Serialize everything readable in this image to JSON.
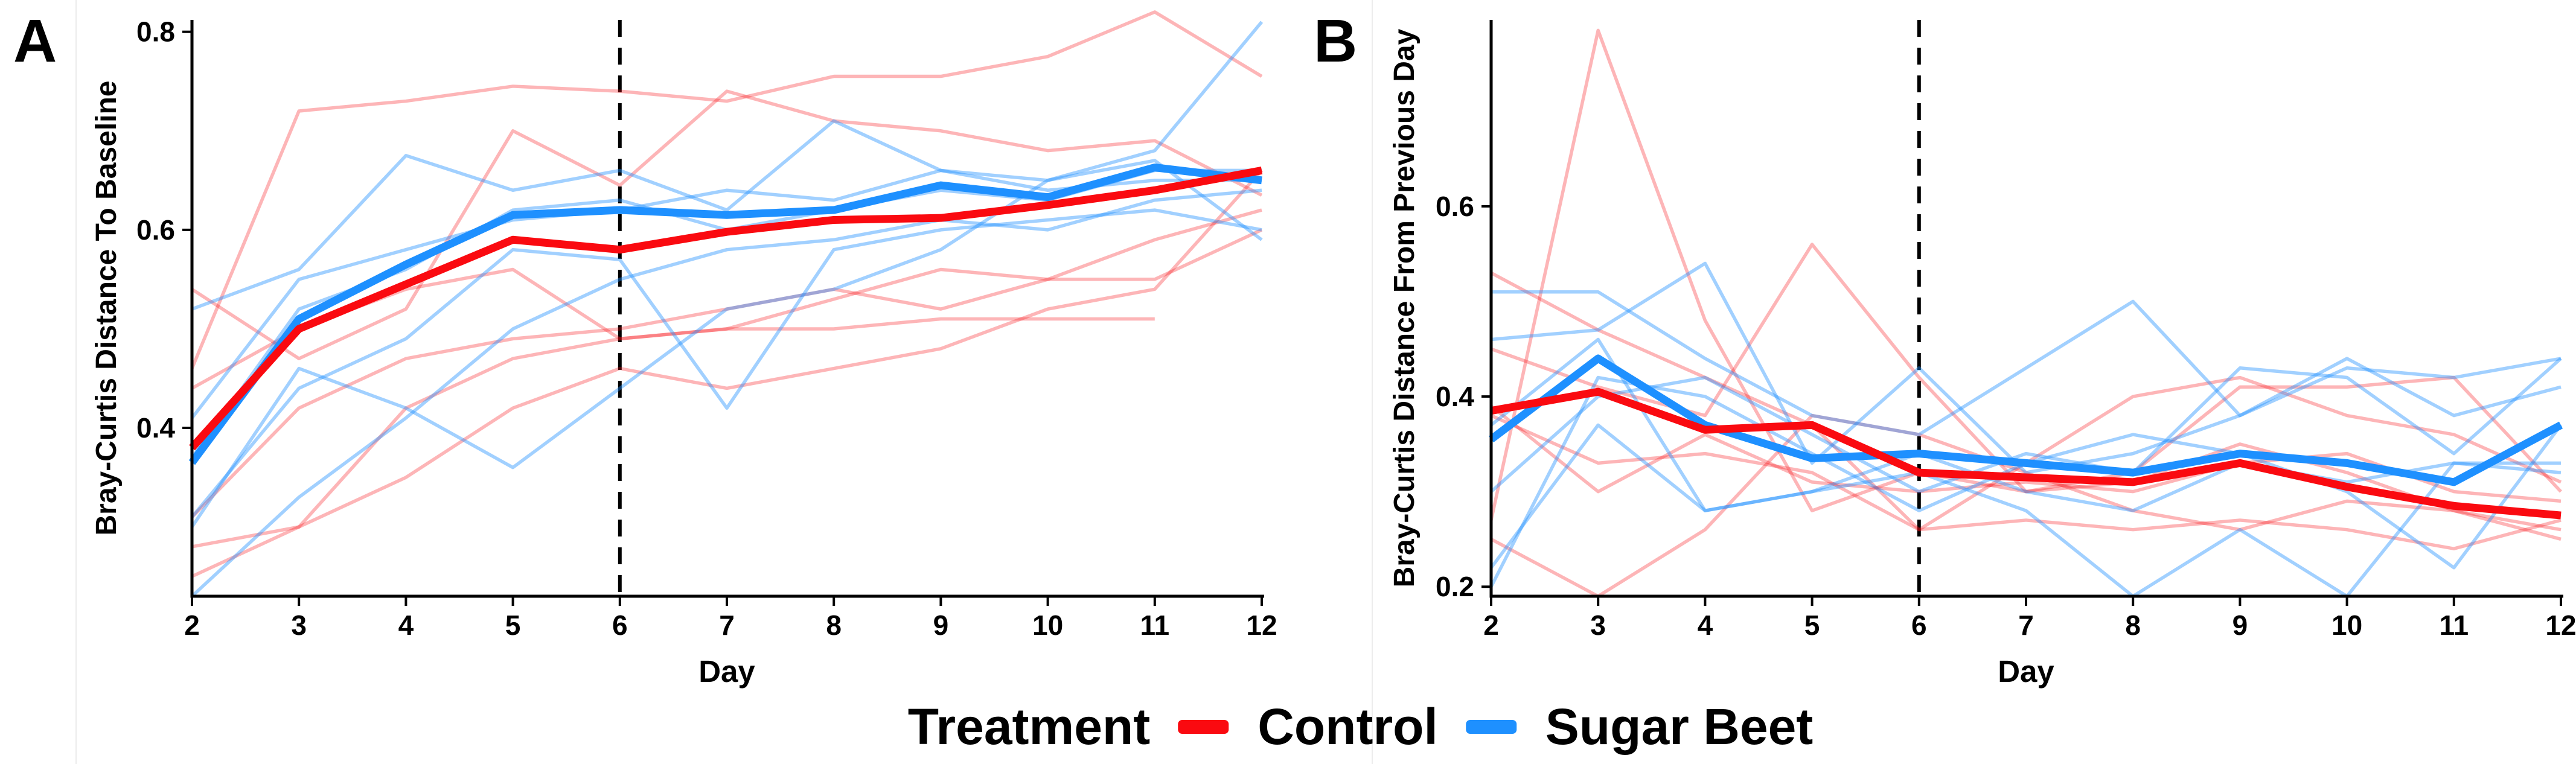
{
  "colors": {
    "control": "#fa0a10",
    "sugar_beet": "#1e90ff",
    "control_individual_opacity": 0.3,
    "sugar_beet_individual_opacity": 0.42,
    "axis": "#000000",
    "vline": "#000000",
    "text": "#000000"
  },
  "legend": {
    "title": "Treatment",
    "items": [
      {
        "label": "Control",
        "group": "Control",
        "color": "#fa0a10"
      },
      {
        "label": "Sugar Beet",
        "group": "Sugar Beet",
        "color": "#1e90ff"
      }
    ]
  },
  "chart_data": [
    {
      "type": "line",
      "panel_label": "A",
      "xlabel": "Day",
      "ylabel": "Bray-Curtis Distance To Baseline",
      "x": [
        2,
        3,
        4,
        5,
        6,
        7,
        8,
        9,
        10,
        11,
        12
      ],
      "x_ticks": [
        2,
        3,
        4,
        5,
        6,
        7,
        8,
        9,
        10,
        11,
        12
      ],
      "y_ticks": [
        0.4,
        0.6,
        0.8
      ],
      "xlim": [
        2,
        12
      ],
      "ylim": [
        0.23,
        0.812
      ],
      "grid": false,
      "vline_x": 6,
      "vline_style": "dashed",
      "series": [
        {
          "name": "Control mean",
          "group": "Control",
          "role": "mean",
          "values": [
            0.38,
            0.5,
            0.545,
            0.59,
            0.58,
            0.598,
            0.61,
            0.612,
            0.625,
            0.64,
            0.66
          ]
        },
        {
          "name": "Sugar Beet mean",
          "group": "Sugar Beet",
          "role": "mean",
          "values": [
            0.365,
            0.51,
            0.565,
            0.615,
            0.62,
            0.615,
            0.62,
            0.645,
            0.633,
            0.663,
            0.65
          ]
        },
        {
          "name": "Control subject 1",
          "group": "Control",
          "role": "individual",
          "values": [
            0.46,
            0.72,
            0.73,
            0.745,
            0.74,
            0.73,
            0.755,
            0.755,
            0.775,
            0.82,
            0.755
          ]
        },
        {
          "name": "Control subject 2",
          "group": "Control",
          "role": "individual",
          "values": [
            0.54,
            0.47,
            0.52,
            0.7,
            0.645,
            0.74,
            0.71,
            0.7,
            0.68,
            0.69,
            0.635
          ]
        },
        {
          "name": "Control subject 3",
          "group": "Control",
          "role": "individual",
          "values": [
            0.44,
            0.5,
            0.54,
            0.56,
            0.49,
            0.5,
            0.53,
            0.56,
            0.55,
            0.59,
            0.62
          ]
        },
        {
          "name": "Control subject 4",
          "group": "Control",
          "role": "individual",
          "values": [
            0.31,
            0.42,
            0.47,
            0.49,
            0.5,
            0.52,
            0.54,
            0.52,
            0.55,
            0.55,
            0.6
          ]
        },
        {
          "name": "Control subject 5",
          "group": "Control",
          "role": "individual",
          "values": [
            0.28,
            0.3,
            0.42,
            0.47,
            0.49,
            0.5,
            0.5,
            0.51,
            0.51,
            0.51,
            null
          ]
        },
        {
          "name": "Control subject 6",
          "group": "Control",
          "role": "individual",
          "values": [
            0.25,
            0.3,
            0.35,
            0.42,
            0.46,
            0.44,
            0.46,
            0.48,
            0.52,
            0.54,
            0.66
          ]
        },
        {
          "name": "Sugar Beet subject 1",
          "group": "Sugar Beet",
          "role": "individual",
          "values": [
            0.52,
            0.56,
            0.675,
            0.64,
            0.66,
            0.62,
            0.71,
            0.66,
            0.65,
            0.67,
            0.59
          ]
        },
        {
          "name": "Sugar Beet subject 2",
          "group": "Sugar Beet",
          "role": "individual",
          "values": [
            0.41,
            0.55,
            0.58,
            0.61,
            0.62,
            0.64,
            0.63,
            0.66,
            0.64,
            0.65,
            0.65
          ]
        },
        {
          "name": "Sugar Beet subject 3",
          "group": "Sugar Beet",
          "role": "individual",
          "values": [
            0.37,
            0.52,
            0.56,
            0.62,
            0.63,
            0.6,
            0.62,
            0.64,
            0.63,
            0.66,
            0.66
          ]
        },
        {
          "name": "Sugar Beet subject 4",
          "group": "Sugar Beet",
          "role": "individual",
          "values": [
            0.31,
            0.44,
            0.49,
            0.58,
            0.57,
            0.42,
            0.58,
            0.6,
            0.61,
            0.62,
            0.6
          ]
        },
        {
          "name": "Sugar Beet subject 5",
          "group": "Sugar Beet",
          "role": "individual",
          "values": [
            0.3,
            0.46,
            0.42,
            0.36,
            0.44,
            0.52,
            0.54,
            0.58,
            0.65,
            0.68,
            0.81
          ]
        },
        {
          "name": "Sugar Beet subject 6",
          "group": "Sugar Beet",
          "role": "individual",
          "values": [
            0.23,
            0.33,
            0.41,
            0.5,
            0.55,
            0.58,
            0.59,
            0.61,
            0.6,
            0.63,
            0.64
          ]
        }
      ]
    },
    {
      "type": "line",
      "panel_label": "B",
      "xlabel": "Day",
      "ylabel": "Bray-Curtis Distance From Previous Day",
      "x": [
        2,
        3,
        4,
        5,
        6,
        7,
        8,
        9,
        10,
        11,
        12
      ],
      "x_ticks": [
        2,
        3,
        4,
        5,
        6,
        7,
        8,
        9,
        10,
        11,
        12
      ],
      "y_ticks": [
        0.2,
        0.4,
        0.6
      ],
      "xlim": [
        2,
        12
      ],
      "ylim": [
        0.19,
        0.796
      ],
      "grid": false,
      "vline_x": 6,
      "vline_style": "dashed",
      "series": [
        {
          "name": "Control mean",
          "group": "Control",
          "role": "mean",
          "values": [
            0.385,
            0.405,
            0.365,
            0.37,
            0.32,
            0.315,
            0.31,
            0.33,
            0.305,
            0.285,
            0.275
          ]
        },
        {
          "name": "Sugar Beet mean",
          "group": "Sugar Beet",
          "role": "mean",
          "values": [
            0.355,
            0.44,
            0.37,
            0.335,
            0.34,
            0.33,
            0.32,
            0.34,
            0.33,
            0.31,
            0.37
          ]
        },
        {
          "name": "Control subject 1",
          "group": "Control",
          "role": "individual",
          "values": [
            0.53,
            0.47,
            0.42,
            0.37,
            0.26,
            0.33,
            0.4,
            0.42,
            0.38,
            0.36,
            0.31
          ]
        },
        {
          "name": "Control subject 2",
          "group": "Control",
          "role": "individual",
          "values": [
            0.45,
            0.41,
            0.38,
            0.56,
            0.42,
            0.3,
            0.32,
            0.41,
            0.41,
            0.42,
            0.3
          ]
        },
        {
          "name": "Control subject 3",
          "group": "Control",
          "role": "individual",
          "values": [
            0.39,
            0.3,
            0.36,
            0.31,
            0.3,
            0.31,
            0.3,
            0.33,
            0.34,
            0.3,
            0.29
          ]
        },
        {
          "name": "Control subject 4",
          "group": "Control",
          "role": "individual",
          "values": [
            0.38,
            0.33,
            0.34,
            0.32,
            0.26,
            0.27,
            0.26,
            0.27,
            0.26,
            0.24,
            0.27
          ]
        },
        {
          "name": "Control subject 5",
          "group": "Control",
          "role": "individual",
          "values": [
            0.27,
            0.785,
            0.48,
            0.28,
            0.32,
            0.3,
            0.31,
            0.35,
            0.32,
            0.28,
            0.26
          ]
        },
        {
          "name": "Control subject 6",
          "group": "Control",
          "role": "individual",
          "values": [
            0.25,
            0.19,
            0.26,
            0.38,
            0.36,
            0.32,
            0.28,
            0.26,
            0.29,
            0.28,
            0.25
          ]
        },
        {
          "name": "Sugar Beet subject 1",
          "group": "Sugar Beet",
          "role": "individual",
          "values": [
            0.51,
            0.51,
            0.44,
            0.38,
            0.36,
            0.43,
            0.5,
            0.38,
            0.44,
            0.38,
            0.41
          ]
        },
        {
          "name": "Sugar Beet subject 2",
          "group": "Sugar Beet",
          "role": "individual",
          "values": [
            0.46,
            0.47,
            0.54,
            0.33,
            0.43,
            0.32,
            0.34,
            0.38,
            0.43,
            0.42,
            0.44
          ]
        },
        {
          "name": "Sugar Beet subject 3",
          "group": "Sugar Beet",
          "role": "individual",
          "values": [
            0.37,
            0.46,
            0.28,
            0.3,
            0.34,
            0.3,
            0.28,
            0.33,
            0.31,
            0.33,
            0.33
          ]
        },
        {
          "name": "Sugar Beet subject 4",
          "group": "Sugar Beet",
          "role": "individual",
          "values": [
            0.3,
            0.4,
            0.42,
            0.36,
            0.3,
            0.34,
            0.32,
            0.43,
            0.42,
            0.34,
            0.44
          ]
        },
        {
          "name": "Sugar Beet subject 5",
          "group": "Sugar Beet",
          "role": "individual",
          "values": [
            0.22,
            0.37,
            0.28,
            0.3,
            0.32,
            0.28,
            0.19,
            0.26,
            0.19,
            0.33,
            0.32
          ]
        },
        {
          "name": "Sugar Beet subject 6",
          "group": "Sugar Beet",
          "role": "individual",
          "values": [
            0.2,
            0.42,
            0.4,
            0.34,
            0.28,
            0.33,
            0.36,
            0.34,
            0.3,
            0.22,
            0.37
          ]
        }
      ]
    }
  ]
}
